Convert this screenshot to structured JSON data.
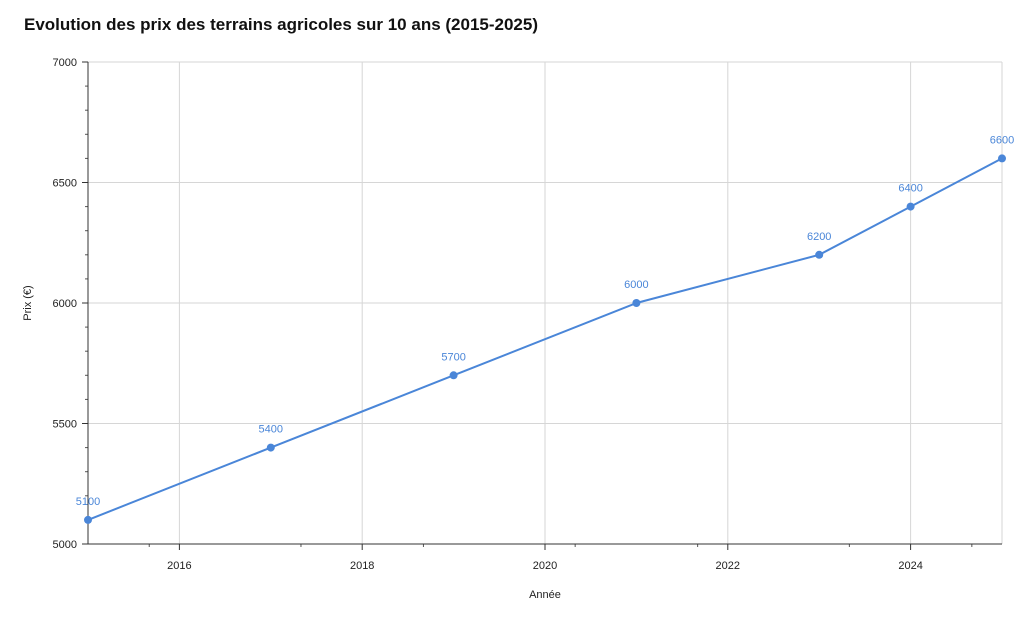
{
  "chart_data": {
    "type": "line",
    "title": "Evolution des prix des terrains agricoles sur 10 ans (2015-2025)",
    "xlabel": "Année",
    "ylabel": "Prix (€)",
    "x": [
      2015,
      2017,
      2019,
      2021,
      2023,
      2024,
      2025
    ],
    "series": [
      {
        "values": [
          5100,
          5400,
          5700,
          6000,
          6200,
          6400,
          6600
        ],
        "color": "#4a86d8"
      }
    ],
    "xlim": [
      2015,
      2025
    ],
    "ylim": [
      5000,
      7000
    ],
    "x_ticks": [
      2016,
      2018,
      2020,
      2022,
      2024
    ],
    "y_ticks": [
      5000,
      5500,
      6000,
      6500,
      7000
    ],
    "grid": true,
    "legend": "none"
  }
}
